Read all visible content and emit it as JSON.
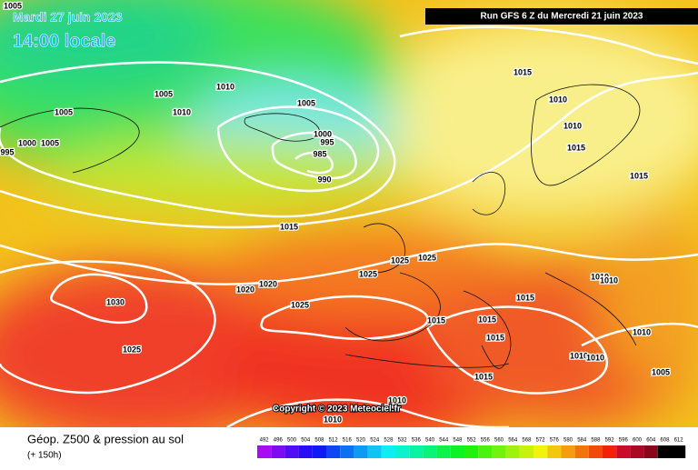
{
  "header": {
    "date": "Mardi 27 juin 2023",
    "time": "14:00 locale",
    "run": "Run GFS 6 Z du Mercredi 21 juin 2023"
  },
  "isobar_labels": [
    "1005",
    "1005",
    "1005",
    "1010",
    "1010",
    "1000",
    "1005",
    "995",
    "1005",
    "1000",
    "995",
    "985",
    "990",
    "1015",
    "1010",
    "1010",
    "1015",
    "1015",
    "1015",
    "1025",
    "1025",
    "1025",
    "1030",
    "1020",
    "1020",
    "1025",
    "1010",
    "1010",
    "1015",
    "1015",
    "1015",
    "1015",
    "1010",
    "1010",
    "1010",
    "1025",
    "1005",
    "1015",
    "1010",
    "1010"
  ],
  "copyright": "Copyright © 2023 Meteociel.fr",
  "footer": {
    "title": "Géop. Z500 & pression au sol",
    "lead": "(+ 150h)"
  },
  "legend": {
    "values": [
      492,
      496,
      500,
      504,
      508,
      512,
      516,
      520,
      524,
      528,
      532,
      536,
      540,
      544,
      548,
      552,
      556,
      560,
      564,
      568,
      572,
      576,
      580,
      584,
      588,
      592,
      596,
      600,
      604,
      608,
      612
    ]
  }
}
